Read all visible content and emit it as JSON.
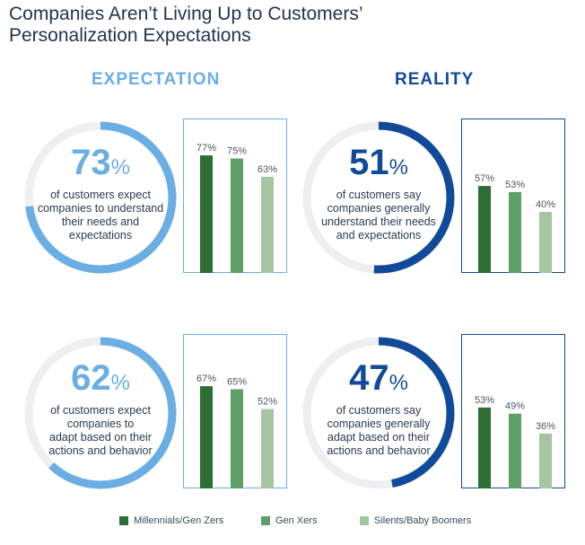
{
  "title_line1": "Companies Aren’t Living Up to Customers’",
  "title_line2": "Personalization Expectations",
  "headers": {
    "expectation": "EXPECTATION",
    "reality": "REALITY"
  },
  "colors": {
    "expectation": "#6aaee3",
    "reality": "#124a9a",
    "track": "#eeeff1",
    "millennials": "#2c6e34",
    "genx": "#5fa066",
    "silents": "#a6c6a2"
  },
  "legend": [
    {
      "label": "Millennials/Gen Zers",
      "color": "#2c6e34"
    },
    {
      "label": "Gen Xers",
      "color": "#5fa066"
    },
    {
      "label": "Silents/Baby Boomers",
      "color": "#a6c6a2"
    }
  ],
  "chart_data": [
    {
      "type": "bar",
      "panel": "expectation",
      "headline_value": "73",
      "headline_unit": "%",
      "headline_fraction": 0.73,
      "description": [
        "of customers expect",
        "companies to understand",
        "their needs and",
        "expectations"
      ],
      "categories": [
        "Millennials/Gen Zers",
        "Gen Xers",
        "Silents/Baby Boomers"
      ],
      "values": [
        77,
        75,
        63
      ],
      "labels": [
        "77%",
        "75%",
        "63%"
      ],
      "ylim": [
        0,
        100
      ]
    },
    {
      "type": "bar",
      "panel": "reality",
      "headline_value": "51",
      "headline_unit": "%",
      "headline_fraction": 0.51,
      "description": [
        "of customers say",
        "companies generally",
        "understand their needs",
        "and expectations"
      ],
      "categories": [
        "Millennials/Gen Zers",
        "Gen Xers",
        "Silents/Baby Boomers"
      ],
      "values": [
        57,
        53,
        40
      ],
      "labels": [
        "57%",
        "53%",
        "40%"
      ],
      "ylim": [
        0,
        100
      ]
    },
    {
      "type": "bar",
      "panel": "expectation",
      "headline_value": "62",
      "headline_unit": "%",
      "headline_fraction": 0.62,
      "description": [
        "of customers expect",
        "companies to",
        "adapt based on their",
        "actions and behavior"
      ],
      "categories": [
        "Millennials/Gen Zers",
        "Gen Xers",
        "Silents/Baby Boomers"
      ],
      "values": [
        67,
        65,
        52
      ],
      "labels": [
        "67%",
        "65%",
        "52%"
      ],
      "ylim": [
        0,
        100
      ]
    },
    {
      "type": "bar",
      "panel": "reality",
      "headline_value": "47",
      "headline_unit": "%",
      "headline_fraction": 0.47,
      "description": [
        "of customers say",
        "companies generally",
        "adapt based on their",
        "actions and behavior"
      ],
      "categories": [
        "Millennials/Gen Zers",
        "Gen Xers",
        "Silents/Baby Boomers"
      ],
      "values": [
        53,
        49,
        36
      ],
      "labels": [
        "53%",
        "49%",
        "36%"
      ],
      "ylim": [
        0,
        100
      ]
    }
  ]
}
